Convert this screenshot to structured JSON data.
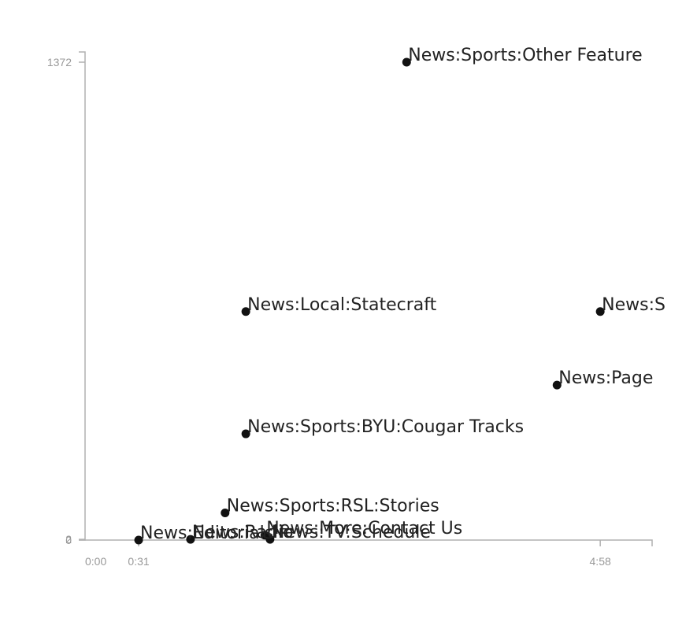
{
  "chart_data": {
    "type": "scatter",
    "title": "",
    "xlabel": "",
    "ylabel": "",
    "x_ticks": [
      {
        "value": 0,
        "label": "0:00"
      },
      {
        "value": 31,
        "label": "0:31"
      },
      {
        "value": 298,
        "label": "4:58"
      }
    ],
    "y_ticks": [
      {
        "value": 0,
        "label": "0"
      },
      {
        "value": 2,
        "label": "2"
      },
      {
        "value": 1372,
        "label": "1372"
      }
    ],
    "xlim": [
      0,
      328
    ],
    "ylim": [
      0,
      1372
    ],
    "grid": false,
    "points": [
      {
        "label": "News:Sports:Other Feature",
        "x": 186,
        "y": 1372
      },
      {
        "label": "News:Local:Statecraft",
        "x": 93,
        "y": 656
      },
      {
        "label": "News:S",
        "x": 298,
        "y": 656
      },
      {
        "label": "News:Page",
        "x": 273,
        "y": 445
      },
      {
        "label": "News:Sports:BYU:Cougar Tracks",
        "x": 93,
        "y": 305
      },
      {
        "label": "News:Sports:RSL:Stories",
        "x": 81,
        "y": 78
      },
      {
        "label": "News:More:Contact Us",
        "x": 104,
        "y": 14
      },
      {
        "label": "News:TV:Schedule",
        "x": 107,
        "y": 2
      },
      {
        "label": "News:Radio",
        "x": 61,
        "y": 2
      },
      {
        "label": "News:Editorials",
        "x": 31,
        "y": 0
      }
    ]
  }
}
